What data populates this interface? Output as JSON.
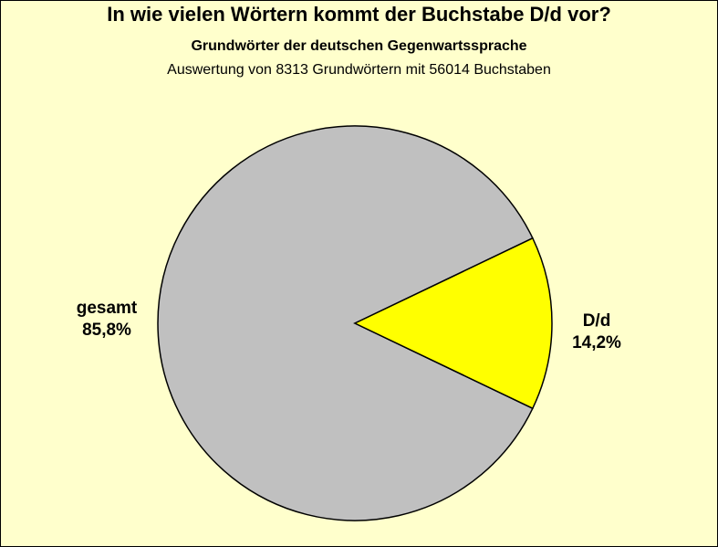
{
  "chart_data": {
    "type": "pie",
    "title": "In wie vielen Wörtern kommt der Buchstabe D/d vor?",
    "subtitle": "Grundwörter der deutschen Gegenwartssprache",
    "subtitle2": "Auswertung von 8313 Grundwörtern mit 56014 Buchstaben",
    "slices": [
      {
        "label": "gesamt",
        "value": 85.8,
        "value_label": "85,8%",
        "color": "#C0C0C0"
      },
      {
        "label": "D/d",
        "value": 14.2,
        "value_label": "14,2%",
        "color": "#FFFF00"
      }
    ],
    "background_color": "#FFFFCC",
    "outline_color": "#000000"
  }
}
